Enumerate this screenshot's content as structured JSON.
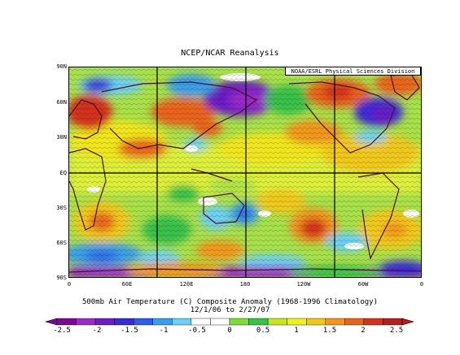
{
  "header": {
    "title": "NCEP/NCAR Reanalysis",
    "credit": "NOAA/ESRL Physical Sciences Division"
  },
  "map": {
    "lat_labels": [
      "90N",
      "60N",
      "30N",
      "EQ",
      "30S",
      "60S",
      "90S"
    ],
    "lon_labels": [
      "0",
      "60E",
      "120E",
      "180",
      "120W",
      "60W",
      "0"
    ],
    "field_summary": "500mb air temperature composite anomaly shading with contour lines and coastlines"
  },
  "caption": {
    "line1": "500mb Air Temperature (C) Composite Anomaly (1968-1996 Climatology)",
    "line2": "12/1/06  to 2/27/07"
  },
  "colorbar": {
    "labels": [
      "-2.5",
      "-2",
      "-1.5",
      "-1",
      "-0.5",
      "0",
      "0.5",
      "1",
      "1.5",
      "2",
      "2.5"
    ],
    "colors": [
      "#7a0a8c",
      "#9a2ac8",
      "#6a1ec4",
      "#3a2ad6",
      "#2a5ee6",
      "#3a9ee8",
      "#6cd0f2",
      "#ffffff",
      "#ffffff",
      "#7cdc3a",
      "#38c04a",
      "#c8e61e",
      "#f0f01e",
      "#f0c81e",
      "#f0961e",
      "#e8641e",
      "#d2321e",
      "#b41e1e"
    ]
  }
}
